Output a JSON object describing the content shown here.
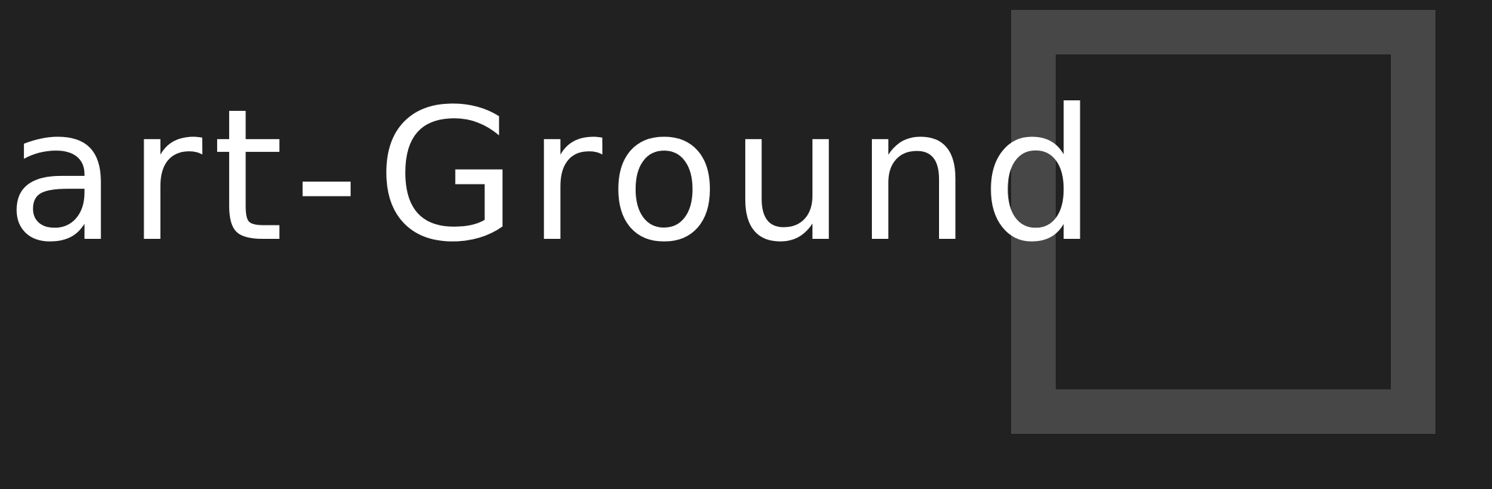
{
  "logo": {
    "text": "art-Ground",
    "text_color": "#ffffff",
    "background_color": "#212121",
    "frame_color": "#474747"
  }
}
